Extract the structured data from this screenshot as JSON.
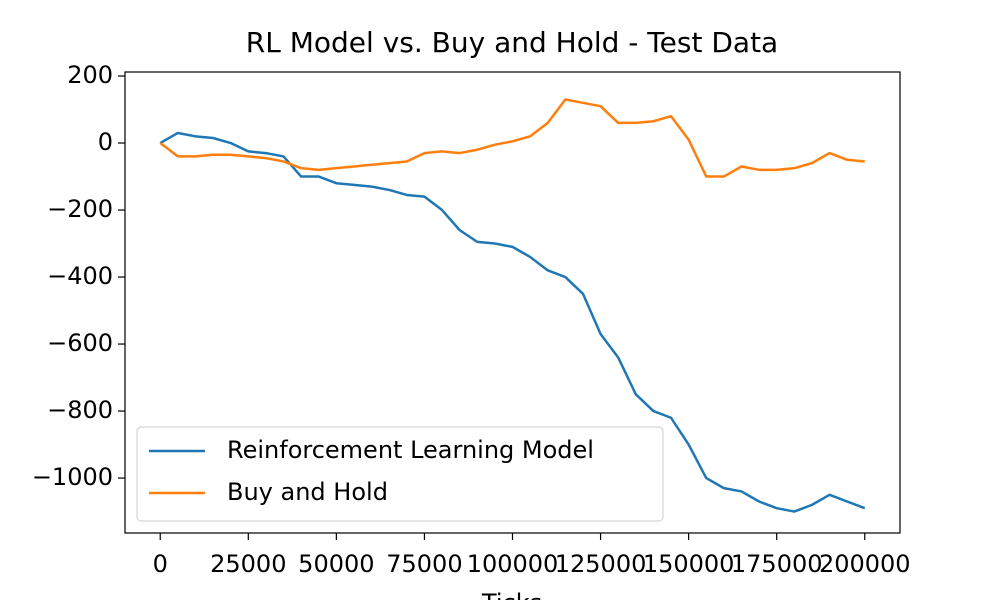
{
  "chart_data": {
    "type": "line",
    "title": "RL Model vs. Buy and Hold - Test Data",
    "x_label": "Ticks",
    "x": [
      0,
      5000,
      10000,
      15000,
      20000,
      25000,
      30000,
      35000,
      40000,
      45000,
      50000,
      55000,
      60000,
      65000,
      70000,
      75000,
      80000,
      85000,
      90000,
      95000,
      100000,
      105000,
      110000,
      115000,
      120000,
      125000,
      130000,
      135000,
      140000,
      145000,
      150000,
      155000,
      160000,
      165000,
      170000,
      175000,
      180000,
      185000,
      190000,
      195000,
      200000
    ],
    "series": [
      {
        "name": "Reinforcement Learning Model",
        "color": "#1f77b4",
        "values": [
          0,
          30,
          20,
          15,
          0,
          -25,
          -30,
          -40,
          -100,
          -100,
          -120,
          -125,
          -130,
          -140,
          -155,
          -160,
          -200,
          -260,
          -295,
          -300,
          -310,
          -340,
          -380,
          -400,
          -450,
          -570,
          -640,
          -750,
          -800,
          -820,
          -900,
          -1000,
          -1030,
          -1040,
          -1070,
          -1090,
          -1100,
          -1080,
          -1050,
          -1070,
          -1090
        ]
      },
      {
        "name": "Buy and Hold",
        "color": "#ff7f0e",
        "values": [
          0,
          -40,
          -40,
          -35,
          -35,
          -40,
          -45,
          -55,
          -75,
          -80,
          -75,
          -70,
          -65,
          -60,
          -55,
          -30,
          -25,
          -30,
          -20,
          -5,
          5,
          20,
          60,
          130,
          120,
          110,
          60,
          60,
          65,
          80,
          10,
          -100,
          -100,
          -70,
          -80,
          -80,
          -75,
          -60,
          -30,
          -50,
          -55
        ]
      }
    ],
    "xlim": [
      -10000,
      210000
    ],
    "ylim": [
      -1164,
      212
    ],
    "xticks": [
      0,
      25000,
      50000,
      75000,
      100000,
      125000,
      150000,
      175000,
      200000
    ],
    "yticks": [
      {
        "value": -1000,
        "label": "−1000"
      },
      {
        "value": -800,
        "label": "−800"
      },
      {
        "value": -600,
        "label": "−600"
      },
      {
        "value": -400,
        "label": "−400"
      },
      {
        "value": -200,
        "label": "−200"
      },
      0,
      200
    ],
    "legend": "lower left"
  }
}
